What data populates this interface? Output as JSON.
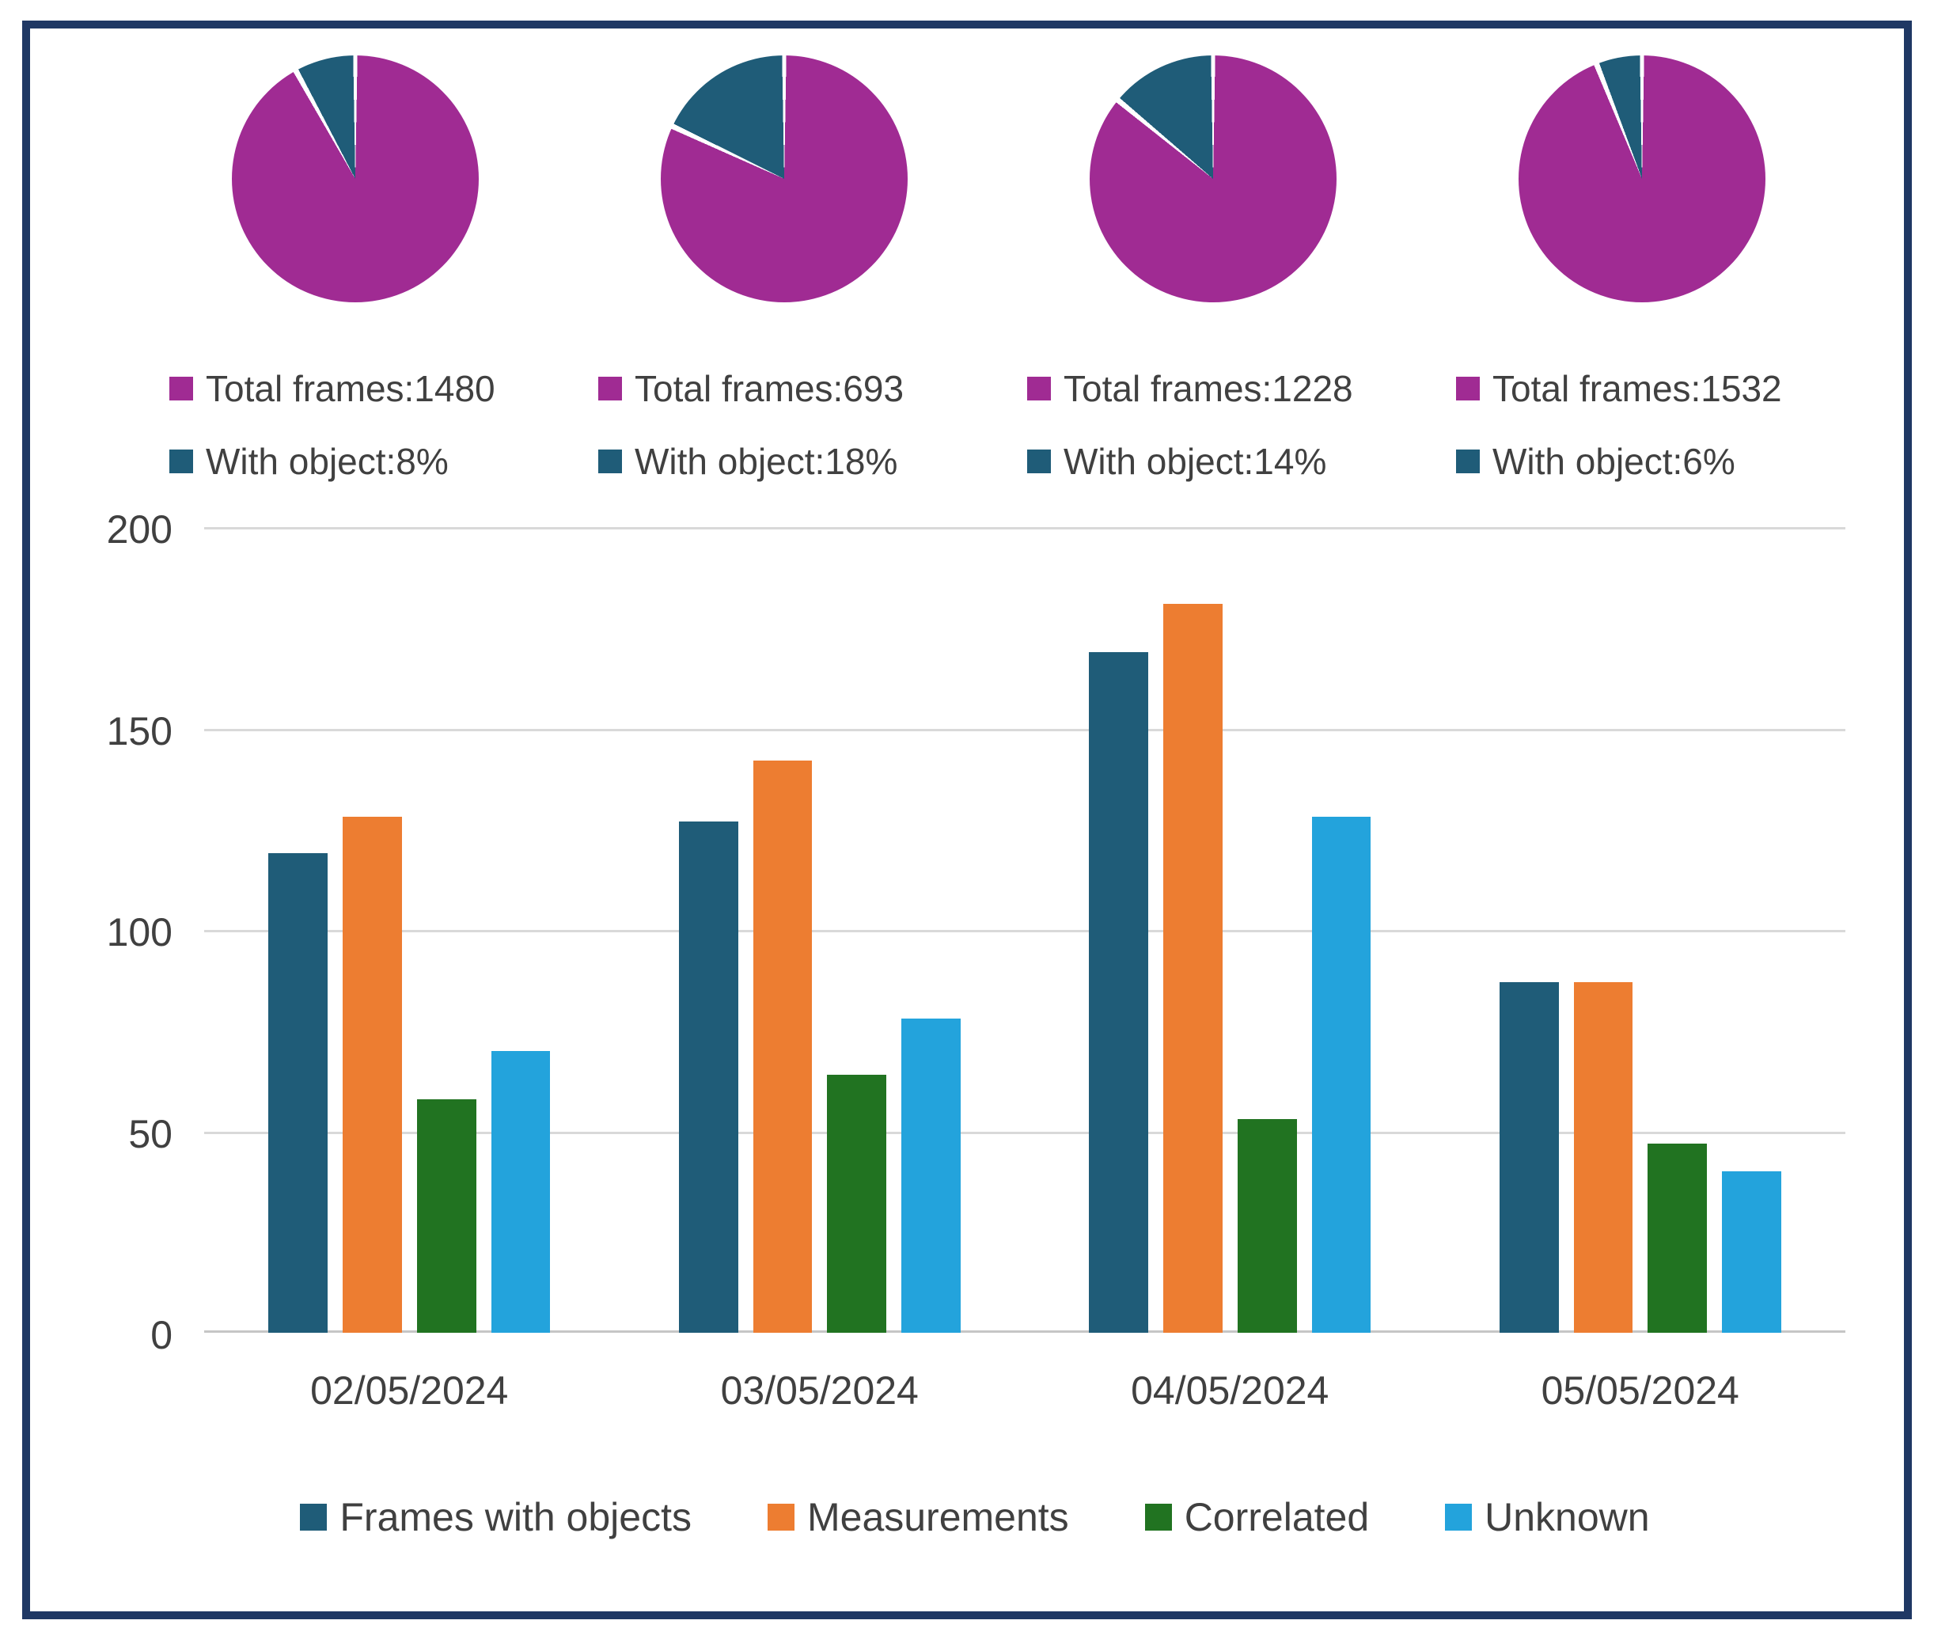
{
  "chart_data": [
    {
      "type": "pie",
      "labels": [
        "Total frames",
        "With object"
      ],
      "values": [
        92,
        8
      ],
      "total_frames": 1480,
      "with_object_pct": 8,
      "legend": [
        "Total frames:1480",
        "With object:8%"
      ],
      "colors": [
        "#A02B93",
        "#1F5C78"
      ]
    },
    {
      "type": "pie",
      "labels": [
        "Total frames",
        "With object"
      ],
      "values": [
        82,
        18
      ],
      "total_frames": 693,
      "with_object_pct": 18,
      "legend": [
        "Total frames:693",
        "With object:18%"
      ],
      "colors": [
        "#A02B93",
        "#1F5C78"
      ]
    },
    {
      "type": "pie",
      "labels": [
        "Total frames",
        "With object"
      ],
      "values": [
        86,
        14
      ],
      "total_frames": 1228,
      "with_object_pct": 14,
      "legend": [
        "Total frames:1228",
        "With object:14%"
      ],
      "colors": [
        "#A02B93",
        "#1F5C78"
      ]
    },
    {
      "type": "pie",
      "labels": [
        "Total frames",
        "With object"
      ],
      "values": [
        94,
        6
      ],
      "total_frames": 1532,
      "with_object_pct": 6,
      "legend": [
        "Total frames:1532",
        "With object:6%"
      ],
      "colors": [
        "#A02B93",
        "#1F5C78"
      ]
    },
    {
      "type": "bar",
      "categories": [
        "02/05/2024",
        "03/05/2024",
        "04/05/2024",
        "05/05/2024"
      ],
      "series": [
        {
          "name": "Frames with objects",
          "color": "#1F5C78",
          "values": [
            119,
            127,
            169,
            87
          ]
        },
        {
          "name": "Measurements",
          "color": "#ED7D31",
          "values": [
            128,
            142,
            181,
            87
          ]
        },
        {
          "name": "Correlated",
          "color": "#217321",
          "values": [
            58,
            64,
            53,
            47
          ]
        },
        {
          "name": "Unknown",
          "color": "#23A3DC",
          "values": [
            70,
            78,
            128,
            40
          ]
        }
      ],
      "ylim": [
        0,
        200
      ],
      "yticks": [
        200,
        150,
        100,
        50,
        0
      ],
      "grid": true,
      "legend_position": "bottom",
      "title": "",
      "xlabel": "",
      "ylabel": ""
    }
  ],
  "frame": {
    "border_color": "#1F3864",
    "background": "#ffffff"
  }
}
